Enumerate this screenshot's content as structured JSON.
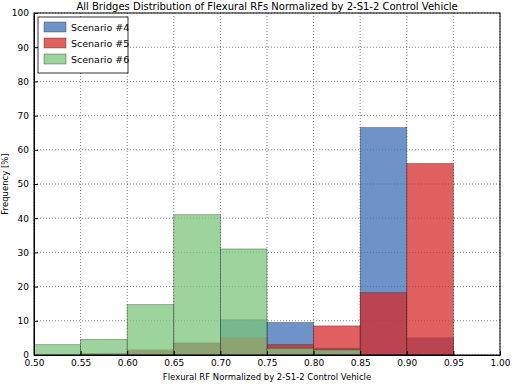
{
  "chart_data": {
    "type": "histogram",
    "title": "All Bridges Distribution of Flexural RFs Normalized by 2-S1-2 Control Vehicle",
    "x_label": "Flexural RF Normalized by 2-S1-2 Control Vehicle",
    "y_label": "Frequency [%]",
    "bins": [
      0.5,
      0.55,
      0.6,
      0.65,
      0.7,
      0.75,
      0.8,
      0.85,
      0.9,
      0.95,
      1.0
    ],
    "series": [
      {
        "name": "Scenario #4",
        "color": "#3d6fb6",
        "values": [
          0,
          0,
          1,
          3.5,
          10.3,
          9.5,
          2,
          66.5,
          5,
          0
        ]
      },
      {
        "name": "Scenario #5",
        "color": "#d62a2a",
        "values": [
          0,
          0.5,
          1.5,
          3.5,
          5,
          3,
          8.5,
          18.2,
          56,
          0
        ]
      },
      {
        "name": "Scenario #6",
        "color": "#7cc47c",
        "values": [
          3,
          4.5,
          14.7,
          41,
          31,
          2,
          1.5,
          0,
          0,
          0
        ]
      }
    ],
    "xlim": [
      0.5,
      1.0
    ],
    "xticks": [
      {
        "value": 0.5,
        "label": "0.50"
      },
      {
        "value": 0.55,
        "label": "0.55"
      },
      {
        "value": 0.6,
        "label": "0.60"
      },
      {
        "value": 0.65,
        "label": "0.65"
      },
      {
        "value": 0.7,
        "label": "0.70"
      },
      {
        "value": 0.75,
        "label": "0.75"
      },
      {
        "value": 0.8,
        "label": "0.80"
      },
      {
        "value": 0.85,
        "label": "0.85"
      },
      {
        "value": 0.9,
        "label": "0.90"
      },
      {
        "value": 0.95,
        "label": "0.95"
      },
      {
        "value": 1.0,
        "label": "1.00"
      }
    ],
    "ylim": [
      0,
      100
    ],
    "yticks": [
      0,
      10,
      20,
      30,
      40,
      50,
      60,
      70,
      80,
      90,
      100
    ],
    "grid": true,
    "legend": "upper left"
  }
}
